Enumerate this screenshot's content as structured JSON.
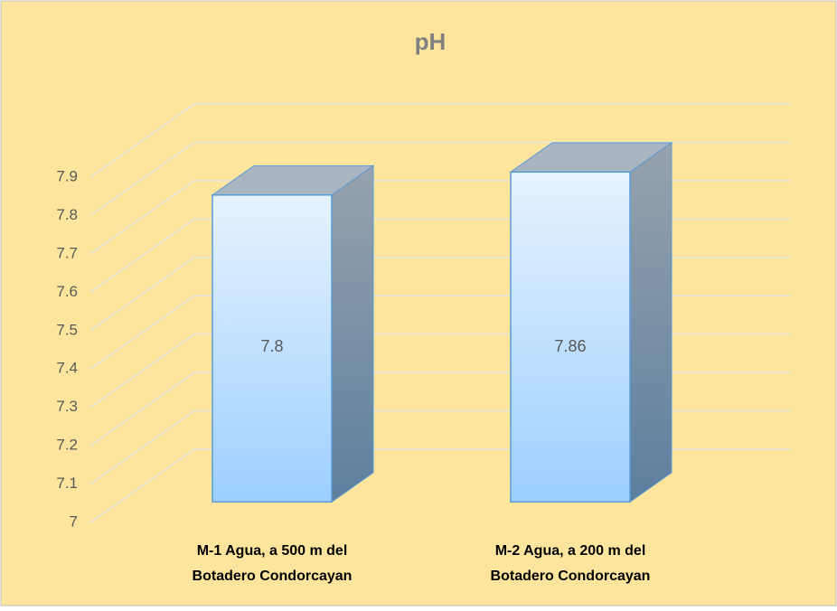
{
  "chart_data": {
    "type": "bar3d",
    "title": "pH",
    "categories": [
      "M-1 Agua, a 500 m del Botadero Condorcayan",
      "M-2 Agua, a 200 m del Botadero Condorcayan"
    ],
    "values": [
      7.8,
      7.86
    ],
    "ylim": [
      7,
      7.9
    ],
    "yticks": [
      7,
      7.1,
      7.2,
      7.3,
      7.4,
      7.5,
      7.6,
      7.7,
      7.8,
      7.9
    ],
    "grid": true
  }
}
